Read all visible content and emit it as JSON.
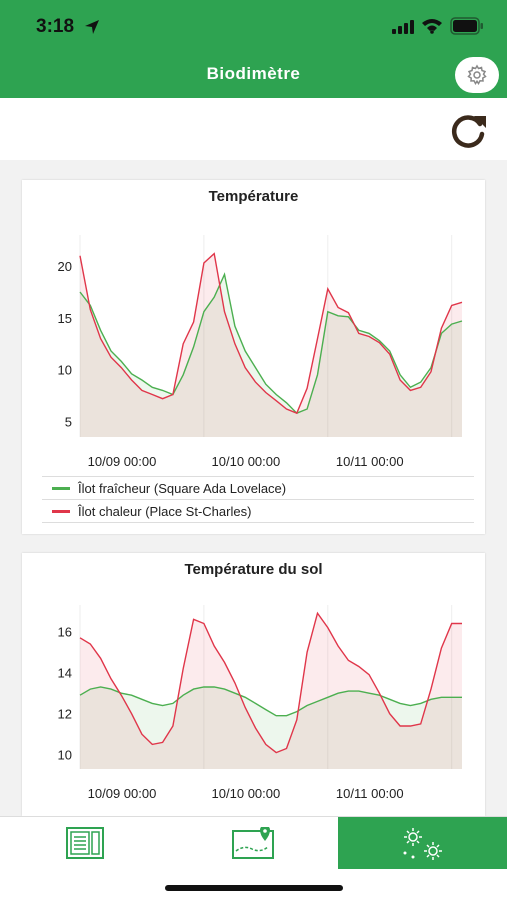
{
  "status_bar": {
    "time": "3:18"
  },
  "header": {
    "title": "Biodimètre"
  },
  "colors": {
    "brand_green": "#2ea351",
    "fresh_series": "#4caf50",
    "heat_series": "#e0364a",
    "refresh_icon": "#3b2a1c"
  },
  "charts": {
    "temperature": {
      "title": "Température",
      "legend": [
        "Îlot fraîcheur (Square Ada Lovelace)",
        "Îlot chaleur (Place St-Charles)"
      ]
    },
    "soil": {
      "title": "Température du sol"
    }
  },
  "tabs": [
    {
      "icon": "list-panels-icon"
    },
    {
      "icon": "map-marker-icon"
    },
    {
      "icon": "sensors-icon",
      "active": true
    }
  ],
  "chart_data": [
    {
      "type": "line",
      "title": "Température",
      "x_ticks": [
        "10/09 00:00",
        "10/10 00:00",
        "10/11 00:00"
      ],
      "x": [
        0,
        2,
        4,
        6,
        8,
        10,
        12,
        14,
        16,
        18,
        20,
        22,
        24,
        26,
        28,
        30,
        32,
        34,
        36,
        38,
        40,
        42,
        44,
        46,
        48,
        50,
        52,
        54,
        56,
        58,
        60,
        62,
        64,
        66,
        68,
        70,
        72,
        74
      ],
      "x_unit": "hours since 10/09 00:00",
      "ylim": [
        3.5,
        23
      ],
      "y_ticks": [
        5,
        10,
        15,
        20
      ],
      "series": [
        {
          "name": "Îlot fraîcheur (Square Ada Lovelace)",
          "color": "#4caf50",
          "values": [
            17.5,
            16.2,
            13.8,
            11.8,
            10.8,
            9.6,
            9.0,
            8.3,
            8.0,
            7.6,
            9.5,
            12.2,
            15.6,
            17.0,
            19.2,
            14.2,
            11.8,
            10.2,
            8.6,
            7.6,
            6.8,
            5.8,
            6.2,
            9.5,
            15.6,
            15.2,
            15.1,
            13.8,
            13.5,
            12.8,
            11.8,
            9.5,
            8.3,
            8.8,
            10.2,
            13.5,
            14.4,
            14.7
          ]
        },
        {
          "name": "Îlot chaleur (Place St-Charles)",
          "color": "#e0364a",
          "values": [
            21.0,
            15.8,
            13.0,
            11.2,
            10.2,
            9.0,
            8.0,
            7.6,
            7.2,
            7.6,
            12.5,
            14.6,
            20.3,
            21.2,
            15.6,
            12.5,
            10.2,
            8.8,
            7.8,
            7.0,
            6.2,
            5.8,
            8.2,
            13.0,
            17.8,
            16.0,
            15.5,
            13.5,
            13.2,
            12.6,
            11.5,
            9.0,
            8.0,
            8.3,
            9.8,
            14.0,
            16.2,
            16.5
          ]
        }
      ]
    },
    {
      "type": "area",
      "title": "Température du sol",
      "x_ticks": [
        "10/09 00:00",
        "10/10 00:00",
        "10/11 00:00"
      ],
      "x": [
        0,
        2,
        4,
        6,
        8,
        10,
        12,
        14,
        16,
        18,
        20,
        22,
        24,
        26,
        28,
        30,
        32,
        34,
        36,
        38,
        40,
        42,
        44,
        46,
        48,
        50,
        52,
        54,
        56,
        58,
        60,
        62,
        64,
        66,
        68,
        70,
        72,
        74
      ],
      "x_unit": "hours since 10/09 00:00",
      "ylim": [
        9.3,
        17.3
      ],
      "y_ticks": [
        10,
        12,
        14,
        16
      ],
      "series": [
        {
          "name": "Îlot fraîcheur (Square Ada Lovelace)",
          "color": "#4caf50",
          "values": [
            12.9,
            13.2,
            13.3,
            13.2,
            13.0,
            12.9,
            12.7,
            12.5,
            12.4,
            12.5,
            12.9,
            13.2,
            13.3,
            13.3,
            13.2,
            13.0,
            12.8,
            12.5,
            12.2,
            11.9,
            11.9,
            12.1,
            12.4,
            12.6,
            12.8,
            13.0,
            13.1,
            13.1,
            13.0,
            12.9,
            12.7,
            12.5,
            12.4,
            12.5,
            12.7,
            12.8,
            12.8,
            12.8
          ]
        },
        {
          "name": "Îlot chaleur (Place St-Charles)",
          "color": "#e0364a",
          "values": [
            15.7,
            15.4,
            14.7,
            13.7,
            12.9,
            12.0,
            11.0,
            10.5,
            10.6,
            11.4,
            14.2,
            16.6,
            16.4,
            15.3,
            14.5,
            13.5,
            12.3,
            11.3,
            10.5,
            10.1,
            10.3,
            11.7,
            15.0,
            16.9,
            16.2,
            15.3,
            14.6,
            14.3,
            13.9,
            13.0,
            12.0,
            11.4,
            11.4,
            11.5,
            13.2,
            15.2,
            16.4,
            16.4
          ]
        }
      ]
    }
  ]
}
